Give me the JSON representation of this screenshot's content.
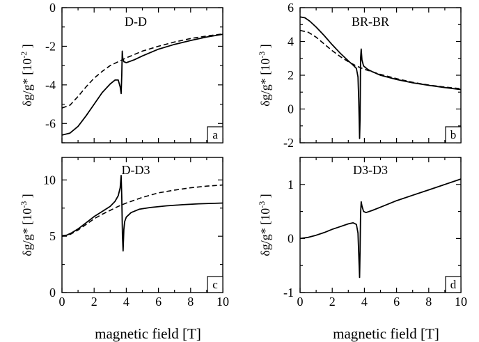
{
  "figure": {
    "xlabel": "magnetic field [T]"
  },
  "chart_data": [
    {
      "type": "line",
      "panel": "a",
      "title": "D-D",
      "ylabel": "δg/g* [10^-2]",
      "ylabel_main": "δg/g* [10",
      "ylabel_exp": "-2",
      "ylabel_tail": "]",
      "xlabel": "",
      "xlim": [
        0,
        10
      ],
      "ylim": [
        -7,
        0
      ],
      "xticks": [
        0,
        2,
        4,
        6,
        8,
        10
      ],
      "xtick_labels": [],
      "yticks": [
        -6,
        -4,
        -2,
        0
      ],
      "ytick_labels": [
        "-6",
        "-4",
        "-2",
        "0"
      ],
      "series": [
        {
          "style": "solid",
          "x": [
            0,
            0.5,
            1,
            1.5,
            2,
            2.5,
            3,
            3.3,
            3.5,
            3.62,
            3.68,
            3.72,
            3.75,
            3.78,
            3.85,
            4,
            4.5,
            5,
            6,
            7,
            8,
            9,
            10
          ],
          "y": [
            -6.6,
            -6.5,
            -6.15,
            -5.6,
            -5.0,
            -4.4,
            -3.95,
            -3.75,
            -3.75,
            -4.1,
            -4.45,
            -3.5,
            -2.25,
            -2.6,
            -2.8,
            -2.85,
            -2.7,
            -2.5,
            -2.15,
            -1.9,
            -1.7,
            -1.52,
            -1.38
          ]
        },
        {
          "style": "dashed",
          "x": [
            0,
            0.5,
            1,
            1.5,
            2,
            2.5,
            3,
            3.5,
            4,
            5,
            6,
            7,
            8,
            9,
            10
          ],
          "y": [
            -5.2,
            -5.05,
            -4.6,
            -4.1,
            -3.65,
            -3.3,
            -3.0,
            -2.8,
            -2.6,
            -2.25,
            -2.0,
            -1.78,
            -1.6,
            -1.47,
            -1.36
          ]
        }
      ]
    },
    {
      "type": "line",
      "panel": "b",
      "title": "BR-BR",
      "ylabel": "δg/g* [10^-3]",
      "ylabel_main": "δg/g* [10",
      "ylabel_exp": "-3",
      "ylabel_tail": "]",
      "xlabel": "",
      "xlim": [
        0,
        10
      ],
      "ylim": [
        -2,
        6
      ],
      "xticks": [
        0,
        2,
        4,
        6,
        8,
        10
      ],
      "xtick_labels": [],
      "yticks": [
        -2,
        0,
        2,
        4,
        6
      ],
      "ytick_labels": [
        "-2",
        "0",
        "2",
        "4",
        "6"
      ],
      "series": [
        {
          "style": "solid",
          "x": [
            0,
            0.3,
            0.6,
            1,
            1.5,
            2,
            2.5,
            3,
            3.3,
            3.5,
            3.6,
            3.65,
            3.7,
            3.73,
            3.76,
            3.8,
            3.85,
            3.95,
            4.2,
            4.5,
            5,
            6,
            7,
            8,
            9,
            10
          ],
          "y": [
            5.45,
            5.4,
            5.2,
            4.85,
            4.35,
            3.8,
            3.3,
            2.85,
            2.6,
            2.4,
            1.9,
            0.5,
            -1.75,
            -0.5,
            3.0,
            3.55,
            2.9,
            2.55,
            2.35,
            2.2,
            2.0,
            1.75,
            1.55,
            1.4,
            1.27,
            1.15
          ]
        },
        {
          "style": "dashed",
          "x": [
            0,
            0.5,
            1,
            1.5,
            2,
            2.5,
            3,
            3.5,
            4,
            5,
            6,
            7,
            8,
            9,
            10
          ],
          "y": [
            4.65,
            4.55,
            4.25,
            3.85,
            3.45,
            3.1,
            2.8,
            2.55,
            2.35,
            2.05,
            1.8,
            1.58,
            1.42,
            1.3,
            1.2
          ]
        }
      ]
    },
    {
      "type": "line",
      "panel": "c",
      "title": "D-D3",
      "ylabel": "δg/g* [10^-3]",
      "ylabel_main": "δg/g* [10",
      "ylabel_exp": "-3",
      "ylabel_tail": "]",
      "xlabel": "magnetic field [T]",
      "xlim": [
        0,
        10
      ],
      "ylim": [
        0,
        12
      ],
      "xticks": [
        0,
        2,
        4,
        6,
        8,
        10
      ],
      "xtick_labels": [
        "0",
        "2",
        "4",
        "6",
        "8",
        "10"
      ],
      "yticks": [
        0,
        5,
        10
      ],
      "ytick_labels": [
        "0",
        "5",
        "10"
      ],
      "series": [
        {
          "style": "solid",
          "x": [
            0,
            0.3,
            0.6,
            1,
            1.5,
            2,
            2.5,
            3,
            3.3,
            3.5,
            3.62,
            3.68,
            3.72,
            3.76,
            3.8,
            3.85,
            3.9,
            4.0,
            4.3,
            4.8,
            5.5,
            6.5,
            7.5,
            8.5,
            10
          ],
          "y": [
            5.05,
            5.1,
            5.3,
            5.65,
            6.2,
            6.75,
            7.2,
            7.65,
            8.1,
            8.6,
            9.3,
            10.4,
            8.5,
            5.0,
            3.7,
            5.6,
            6.3,
            6.7,
            7.1,
            7.4,
            7.55,
            7.7,
            7.8,
            7.88,
            7.95
          ]
        },
        {
          "style": "dashed",
          "x": [
            0,
            0.5,
            1,
            1.5,
            2,
            2.5,
            3,
            3.5,
            4,
            5,
            6,
            7,
            8,
            9,
            10
          ],
          "y": [
            5.0,
            5.15,
            5.55,
            6.05,
            6.55,
            6.95,
            7.3,
            7.65,
            7.95,
            8.45,
            8.85,
            9.1,
            9.3,
            9.45,
            9.55
          ]
        }
      ]
    },
    {
      "type": "line",
      "panel": "d",
      "title": "D3-D3",
      "ylabel": "δg/g* [10^-3]",
      "ylabel_main": "δg/g* [10",
      "ylabel_exp": "-3",
      "ylabel_tail": "]",
      "xlabel": "magnetic field [T]",
      "xlim": [
        0,
        10
      ],
      "ylim": [
        -1,
        1.5
      ],
      "xticks": [
        0,
        2,
        4,
        6,
        8,
        10
      ],
      "xtick_labels": [
        "0",
        "2",
        "4",
        "6",
        "8",
        "10"
      ],
      "yticks": [
        -1,
        0,
        1
      ],
      "ytick_labels": [
        "-1",
        "0",
        "1"
      ],
      "series": [
        {
          "style": "solid",
          "x": [
            0,
            0.5,
            1,
            1.5,
            2,
            2.5,
            3,
            3.3,
            3.5,
            3.6,
            3.65,
            3.7,
            3.73,
            3.76,
            3.8,
            3.85,
            3.95,
            4.1,
            4.5,
            5,
            6,
            7,
            8,
            9,
            10
          ],
          "y": [
            0.0,
            0.02,
            0.06,
            0.11,
            0.17,
            0.22,
            0.27,
            0.29,
            0.26,
            0.1,
            -0.3,
            -0.72,
            -0.2,
            0.45,
            0.68,
            0.6,
            0.5,
            0.48,
            0.52,
            0.58,
            0.7,
            0.8,
            0.9,
            1.0,
            1.1
          ]
        }
      ]
    }
  ]
}
